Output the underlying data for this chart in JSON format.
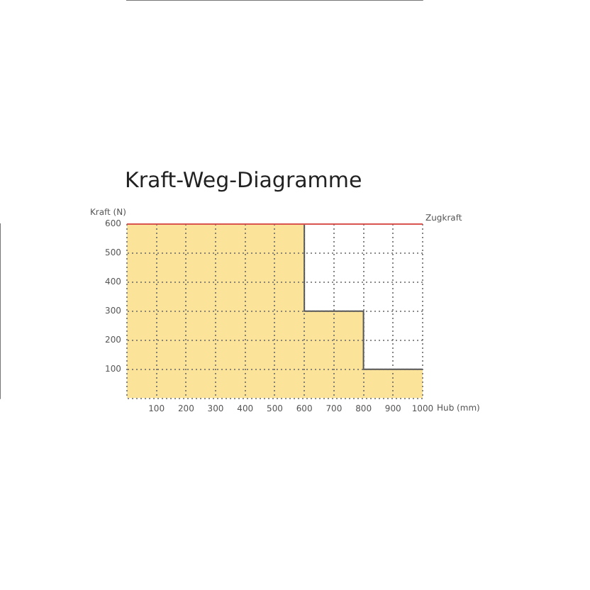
{
  "chart_data": {
    "type": "area",
    "title": "Kraft-Weg-Diagramme",
    "xlabel": "Hub (mm)",
    "ylabel": "Kraft (N)",
    "x": [
      0,
      600,
      600,
      800,
      800,
      1000
    ],
    "series": [
      {
        "color": "#fce39a",
        "values": [
          600,
          600,
          300,
          300,
          100,
          100
        ]
      }
    ],
    "xlim": [
      0,
      1000
    ],
    "xticks": [
      {
        "value": 0,
        "label": null
      },
      100,
      200,
      300,
      400,
      500,
      600,
      700,
      800,
      900,
      1000
    ],
    "ylim": [
      0,
      600
    ],
    "yticks": [
      {
        "value": 0,
        "label": null
      },
      100,
      200,
      300,
      400,
      500,
      600
    ],
    "ref_lines": [
      {
        "axis": "y",
        "value": 600,
        "label": "Zugkraft",
        "color": "#d9534f"
      }
    ],
    "grid": true,
    "line_style": "dotted",
    "marker": "none",
    "legend": false
  }
}
